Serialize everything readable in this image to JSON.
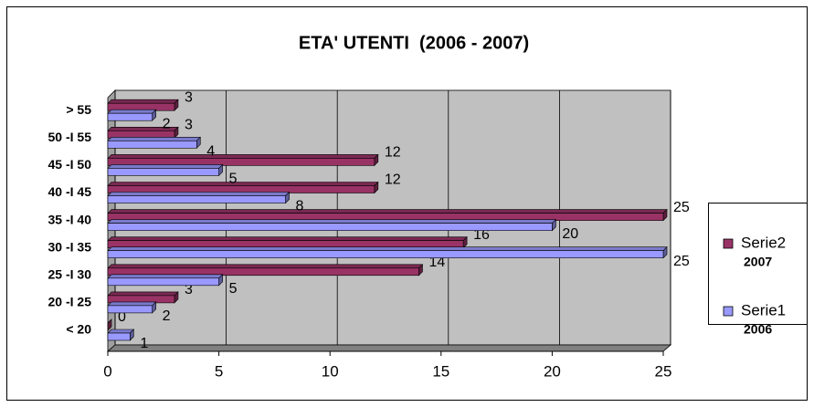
{
  "chart_data": {
    "type": "hbar3d",
    "title": "ETA' UTENTI  (2006 - 2007)",
    "categories": [
      "< 20",
      "20 -I 25",
      "25 -I 30",
      "30 -I 35",
      "35 -I 40",
      "40 -I 45",
      "45 -I 50",
      "50 -I 55",
      "> 55"
    ],
    "series": [
      {
        "name": "Serie1",
        "year": "2006",
        "color": "#9999ff",
        "values": [
          1,
          2,
          5,
          25,
          20,
          8,
          5,
          4,
          2
        ]
      },
      {
        "name": "Serie2",
        "year": "2007",
        "color": "#993366",
        "values": [
          0,
          3,
          14,
          16,
          25,
          12,
          12,
          3,
          3
        ]
      }
    ],
    "xlim": [
      0,
      25
    ],
    "xticks": [
      0,
      5,
      10,
      15,
      20,
      25
    ],
    "grid": true,
    "legend": "right"
  }
}
